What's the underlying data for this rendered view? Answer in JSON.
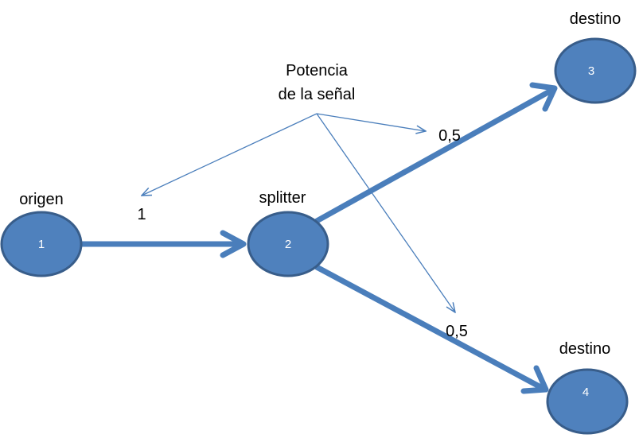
{
  "colors": {
    "node_fill": "#4f81bd",
    "node_stroke": "#385d8a",
    "edge": "#4a7ebb",
    "pointer": "#4a7ebb"
  },
  "nodes": [
    {
      "id": "1",
      "label": "1",
      "caption": "origen"
    },
    {
      "id": "2",
      "label": "2",
      "caption": "splitter"
    },
    {
      "id": "3",
      "label": "3",
      "caption": "destino"
    },
    {
      "id": "4",
      "label": "4",
      "caption": "destino"
    }
  ],
  "edges": [
    {
      "from": "1",
      "to": "2",
      "value": "1"
    },
    {
      "from": "2",
      "to": "3",
      "value": "0,5"
    },
    {
      "from": "2",
      "to": "4",
      "value": "0,5"
    }
  ],
  "annotation": {
    "line1": "Potencia",
    "line2": "de la señal"
  }
}
